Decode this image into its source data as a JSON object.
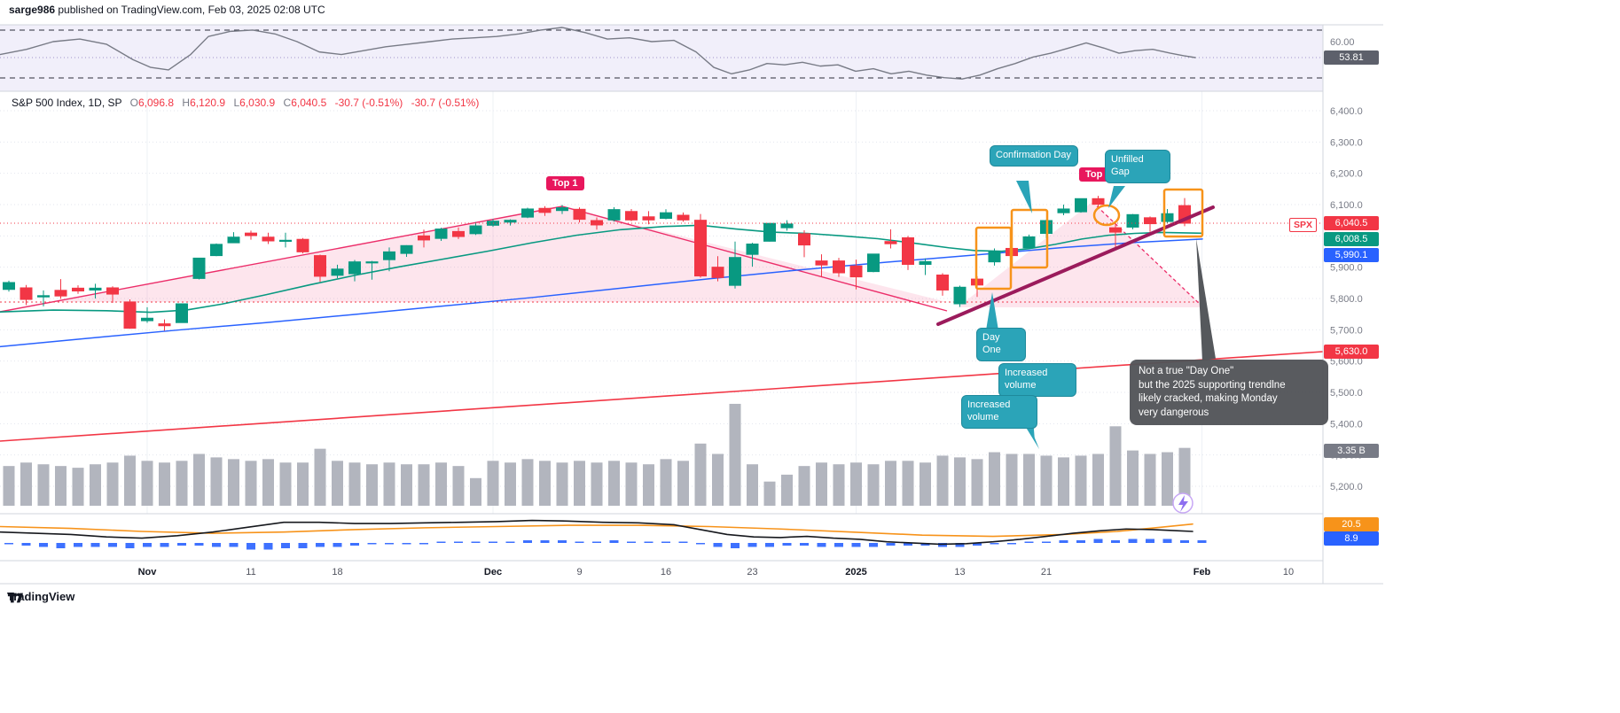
{
  "header": {
    "author": "sarge986",
    "rest": " published on TradingView.com, Feb 03, 2025 02:08 UTC"
  },
  "symbol_info": {
    "title": "S&P 500 Index, 1D, SP",
    "open_label": "O",
    "open": "6,096.8",
    "high_label": "H",
    "high": "6,120.9",
    "low_label": "L",
    "low": "6,030.9",
    "close_label": "C",
    "close": "6,040.5",
    "change": "-30.7 (-0.51%)",
    "change2": "-30.7 (-0.51%)"
  },
  "annotations": {
    "top1": "Top 1",
    "top2": "Top 2",
    "confirmation_day": "Confirmation Day",
    "unfilled_gap": "Unfilled Gap",
    "day_one": "Day One",
    "increased_volume_1": "Increased volume",
    "increased_volume_2": "Increased volume",
    "note": "Not a true \"Day One\"\n but the 2025 supporting trendlne\nlikely cracked, making Monday\nvery dangerous"
  },
  "price_axis": {
    "spx_tag": "SPX",
    "last_price": "6,040.5",
    "ma_fast": "6,008.5",
    "ma_slow": "5,990.1",
    "trendline_level": "5,630.0",
    "volume_total": "3.35 B",
    "levels": [
      "6,400.0",
      "6,300.0",
      "6,200.0",
      "6,100.0",
      "6,000.0",
      "5,900.0",
      "5,800.0",
      "5,700.0",
      "5,600.0",
      "5,500.0",
      "5,400.0",
      "5,300.0",
      "5,200.0"
    ],
    "level_values": [
      6400,
      6300,
      6200,
      6100,
      6000,
      5900,
      5800,
      5700,
      5600,
      5500,
      5400,
      5300,
      5200
    ]
  },
  "rsi_pane": {
    "value": "53.81",
    "level_label": "60.00",
    "series": [
      [
        0,
        55
      ],
      [
        30,
        57
      ],
      [
        60,
        60
      ],
      [
        90,
        61
      ],
      [
        120,
        59
      ],
      [
        150,
        53
      ],
      [
        170,
        50
      ],
      [
        190,
        49
      ],
      [
        215,
        55
      ],
      [
        235,
        62
      ],
      [
        260,
        64
      ],
      [
        285,
        64.5
      ],
      [
        310,
        63
      ],
      [
        335,
        60
      ],
      [
        360,
        56
      ],
      [
        385,
        55
      ],
      [
        410,
        56.5
      ],
      [
        435,
        58
      ],
      [
        460,
        59
      ],
      [
        485,
        60
      ],
      [
        510,
        61
      ],
      [
        535,
        61.5
      ],
      [
        560,
        62
      ],
      [
        585,
        63
      ],
      [
        610,
        64.5
      ],
      [
        634,
        65.5
      ],
      [
        660,
        63.5
      ],
      [
        685,
        61
      ],
      [
        710,
        61.5
      ],
      [
        735,
        60
      ],
      [
        760,
        60.5
      ],
      [
        785,
        56
      ],
      [
        805,
        50
      ],
      [
        825,
        47.5
      ],
      [
        845,
        49
      ],
      [
        865,
        51.5
      ],
      [
        885,
        51
      ],
      [
        905,
        52
      ],
      [
        925,
        50.5
      ],
      [
        945,
        51
      ],
      [
        965,
        48.5
      ],
      [
        985,
        49.5
      ],
      [
        1005,
        47.5
      ],
      [
        1025,
        48.5
      ],
      [
        1045,
        47
      ],
      [
        1065,
        46
      ],
      [
        1085,
        45.5
      ],
      [
        1105,
        47
      ],
      [
        1125,
        49.5
      ],
      [
        1145,
        51.5
      ],
      [
        1165,
        54
      ],
      [
        1185,
        55.5
      ],
      [
        1205,
        57.5
      ],
      [
        1225,
        59.5
      ],
      [
        1245,
        57.5
      ],
      [
        1262,
        55.5
      ],
      [
        1280,
        56.5
      ],
      [
        1300,
        57
      ],
      [
        1320,
        55.5
      ],
      [
        1335,
        54.5
      ],
      [
        1348,
        53.81
      ]
    ]
  },
  "indicator_pane": {
    "orange_value": "20.5",
    "blue_value": "8.9",
    "black_line": [
      [
        0,
        14
      ],
      [
        40,
        13
      ],
      [
        80,
        12
      ],
      [
        120,
        10
      ],
      [
        160,
        9
      ],
      [
        200,
        11
      ],
      [
        240,
        14
      ],
      [
        280,
        18
      ],
      [
        320,
        22
      ],
      [
        360,
        22
      ],
      [
        400,
        21
      ],
      [
        440,
        21
      ],
      [
        480,
        21.5
      ],
      [
        520,
        22
      ],
      [
        560,
        22.5
      ],
      [
        600,
        23.5
      ],
      [
        640,
        23
      ],
      [
        680,
        22
      ],
      [
        720,
        21.5
      ],
      [
        760,
        20
      ],
      [
        790,
        16
      ],
      [
        820,
        12
      ],
      [
        850,
        10
      ],
      [
        880,
        9.5
      ],
      [
        910,
        10.5
      ],
      [
        940,
        9
      ],
      [
        970,
        8
      ],
      [
        1000,
        6
      ],
      [
        1030,
        5
      ],
      [
        1060,
        4
      ],
      [
        1090,
        4.5
      ],
      [
        1120,
        6
      ],
      [
        1150,
        8
      ],
      [
        1180,
        10.5
      ],
      [
        1210,
        13
      ],
      [
        1240,
        15
      ],
      [
        1270,
        16.5
      ],
      [
        1300,
        16
      ],
      [
        1330,
        15
      ],
      [
        1345,
        14.5
      ]
    ],
    "orange_line": [
      [
        0,
        18.5
      ],
      [
        80,
        17
      ],
      [
        160,
        14.5
      ],
      [
        240,
        13
      ],
      [
        320,
        14
      ],
      [
        400,
        16
      ],
      [
        480,
        17.5
      ],
      [
        560,
        18.5
      ],
      [
        640,
        19.5
      ],
      [
        720,
        19.5
      ],
      [
        800,
        18.5
      ],
      [
        880,
        16.5
      ],
      [
        960,
        14
      ],
      [
        1040,
        11.5
      ],
      [
        1120,
        10.5
      ],
      [
        1200,
        12
      ],
      [
        1260,
        14.5
      ],
      [
        1310,
        18
      ],
      [
        1345,
        20.5
      ]
    ],
    "histogram": [
      -1,
      -2,
      -3,
      -4,
      -3,
      -3,
      -3,
      -4,
      -3,
      -3,
      -2,
      -2,
      -3,
      -3,
      -5,
      -5,
      -4,
      -4,
      -3,
      -3,
      -2,
      -1,
      -1,
      -1,
      -1,
      1,
      1,
      1,
      1,
      1,
      2,
      2,
      2,
      1,
      1,
      2,
      1,
      1,
      1,
      1,
      -1,
      -3,
      -4,
      -3,
      -3,
      -2,
      -2,
      -3,
      -3,
      -3,
      -3,
      -2,
      -2,
      -2,
      -3,
      -3,
      -2,
      -1,
      -1,
      1,
      1,
      2,
      2,
      3,
      2,
      3,
      3,
      3,
      2,
      2
    ]
  },
  "time_axis": {
    "labels": [
      {
        "t": "Nov",
        "i": 8,
        "b": true
      },
      {
        "t": "11",
        "i": 14,
        "b": false
      },
      {
        "t": "18",
        "i": 19,
        "b": false
      },
      {
        "t": "Dec",
        "i": 28,
        "b": true
      },
      {
        "t": "9",
        "i": 33,
        "b": false
      },
      {
        "t": "16",
        "i": 38,
        "b": false
      },
      {
        "t": "23",
        "i": 43,
        "b": false
      },
      {
        "t": "2025",
        "i": 49,
        "b": true
      },
      {
        "t": "13",
        "i": 55,
        "b": false
      },
      {
        "t": "21",
        "i": 60,
        "b": false
      },
      {
        "t": "Feb",
        "i": 69,
        "b": true
      },
      {
        "t": "10",
        "i": 74,
        "b": false
      }
    ]
  },
  "footer": {
    "brand": "TradingView"
  },
  "chart_data": {
    "type": "candlestick",
    "symbol": "S&P 500 Index",
    "interval": "1D",
    "exchange": "SP",
    "price_range": [
      5200,
      6400
    ],
    "last_bar": {
      "open": 6096.8,
      "high": 6120.9,
      "low": 6030.9,
      "close": 6040.5,
      "change": -30.7,
      "change_pct": -0.51
    },
    "volume_last": "3.35 B",
    "candles": [
      [
        "Oct 22",
        5829,
        5857,
        5822,
        5851,
        2.3
      ],
      [
        "Oct 23",
        5834,
        5843,
        5779,
        5797,
        2.5
      ],
      [
        "Oct 24",
        5805,
        5826,
        5775,
        5809,
        2.4
      ],
      [
        "Oct 25",
        5826,
        5862,
        5799,
        5808,
        2.3
      ],
      [
        "Oct 28",
        5833,
        5842,
        5815,
        5824,
        2.2
      ],
      [
        "Oct 29",
        5827,
        5847,
        5800,
        5833,
        2.4
      ],
      [
        "Oct 30",
        5834,
        5839,
        5786,
        5814,
        2.5
      ],
      [
        "Oct 31",
        5789,
        5797,
        5703,
        5705,
        2.9
      ],
      [
        "Nov 1",
        5729,
        5772,
        5722,
        5737,
        2.6
      ],
      [
        "Nov 4",
        5719,
        5733,
        5697,
        5713,
        2.5
      ],
      [
        "Nov 5",
        5723,
        5784,
        5723,
        5783,
        2.6
      ],
      [
        "Nov 6",
        5864,
        5930,
        5861,
        5929,
        3.0
      ],
      [
        "Nov 7",
        5937,
        5976,
        5935,
        5973,
        2.8
      ],
      [
        "Nov 8",
        5978,
        6012,
        5977,
        5996,
        2.7
      ],
      [
        "Nov 11",
        6009,
        6017,
        5988,
        6001,
        2.6
      ],
      [
        "Nov 12",
        5996,
        6010,
        5974,
        5984,
        2.7
      ],
      [
        "Nov 13",
        5985,
        6010,
        5963,
        5986,
        2.5
      ],
      [
        "Nov 14",
        5989,
        5993,
        5944,
        5949,
        2.5
      ],
      [
        "Nov 15",
        5937,
        5940,
        5853,
        5871,
        3.3
      ],
      [
        "Nov 18",
        5874,
        5908,
        5865,
        5894,
        2.6
      ],
      [
        "Nov 19",
        5879,
        5923,
        5855,
        5917,
        2.5
      ],
      [
        "Nov 20",
        5914,
        5920,
        5860,
        5917,
        2.4
      ],
      [
        "Nov 21",
        5924,
        5963,
        5887,
        5949,
        2.5
      ],
      [
        "Nov 22",
        5944,
        5970,
        5933,
        5969,
        2.4
      ],
      [
        "Nov 25",
        6000,
        6020,
        5963,
        5987,
        2.4
      ],
      [
        "Nov 26",
        5992,
        6026,
        5984,
        6022,
        2.5
      ],
      [
        "Nov 27",
        6014,
        6027,
        5990,
        5998,
        2.3
      ],
      [
        "Nov 29",
        6007,
        6044,
        6003,
        6032,
        1.6
      ],
      [
        "Dec 2",
        6034,
        6054,
        6029,
        6047,
        2.6
      ],
      [
        "Dec 3",
        6044,
        6053,
        6033,
        6050,
        2.5
      ],
      [
        "Dec 4",
        6060,
        6090,
        6057,
        6086,
        2.7
      ],
      [
        "Dec 5",
        6088,
        6095,
        6064,
        6075,
        2.6
      ],
      [
        "Dec 6",
        6081,
        6099,
        6070,
        6090,
        2.5
      ],
      [
        "Dec 9",
        6085,
        6091,
        6043,
        6053,
        2.6
      ],
      [
        "Dec 10",
        6049,
        6059,
        6020,
        6035,
        2.5
      ],
      [
        "Dec 11",
        6051,
        6092,
        6046,
        6084,
        2.6
      ],
      [
        "Dec 12",
        6078,
        6086,
        6047,
        6051,
        2.5
      ],
      [
        "Dec 13",
        6061,
        6079,
        6037,
        6051,
        2.4
      ],
      [
        "Dec 16",
        6056,
        6085,
        6053,
        6074,
        2.7
      ],
      [
        "Dec 17",
        6066,
        6075,
        6045,
        6051,
        2.6
      ],
      [
        "Dec 18",
        6050,
        6070,
        5867,
        5872,
        3.6
      ],
      [
        "Dec 19",
        5900,
        5935,
        5855,
        5867,
        3.0
      ],
      [
        "Dec 20",
        5842,
        5982,
        5832,
        5931,
        5.9
      ],
      [
        "Dec 23",
        5941,
        5978,
        5902,
        5974,
        2.4
      ],
      [
        "Dec 24",
        5983,
        6041,
        5982,
        6040,
        1.4
      ],
      [
        "Dec 26",
        6026,
        6050,
        6017,
        6038,
        1.8
      ],
      [
        "Dec 27",
        6007,
        6018,
        5932,
        5971,
        2.3
      ],
      [
        "Dec 30",
        5920,
        5941,
        5869,
        5907,
        2.5
      ],
      [
        "Dec 31",
        5920,
        5930,
        5869,
        5882,
        2.4
      ],
      [
        "Jan 2",
        5904,
        5924,
        5829,
        5869,
        2.5
      ],
      [
        "Jan 3",
        5886,
        5943,
        5884,
        5942,
        2.4
      ],
      [
        "Jan 6",
        5982,
        6021,
        5960,
        5975,
        2.6
      ],
      [
        "Jan 7",
        5994,
        6000,
        5891,
        5909,
        2.6
      ],
      [
        "Jan 8",
        5909,
        5928,
        5875,
        5918,
        2.5
      ],
      [
        "Jan 10",
        5875,
        5881,
        5809,
        5827,
        2.9
      ],
      [
        "Jan 13",
        5783,
        5841,
        5773,
        5836,
        2.8
      ],
      [
        "Jan 14",
        5862,
        5871,
        5805,
        5843,
        2.7
      ],
      [
        "Jan 15",
        5917,
        5960,
        5905,
        5950,
        3.1
      ],
      [
        "Jan 16",
        5960,
        5964,
        5923,
        5937,
        3.0
      ],
      [
        "Jan 17",
        5962,
        6004,
        5960,
        5997,
        3.0
      ],
      [
        "Jan 21",
        6008,
        6052,
        5993,
        6049,
        2.9
      ],
      [
        "Jan 22",
        6074,
        6100,
        6066,
        6086,
        2.8
      ],
      [
        "Jan 23",
        6077,
        6118,
        6074,
        6119,
        2.9
      ],
      [
        "Jan 24",
        6119,
        6128,
        6088,
        6101,
        3.0
      ],
      [
        "Jan 27",
        6026,
        6043,
        5963,
        6012,
        4.6
      ],
      [
        "Jan 28",
        6028,
        6070,
        6021,
        6068,
        3.2
      ],
      [
        "Jan 29",
        6058,
        6062,
        6013,
        6039,
        3.0
      ],
      [
        "Jan 30",
        6046,
        6086,
        6040,
        6071,
        3.1
      ],
      [
        "Jan 31",
        6096.8,
        6120.9,
        6030.9,
        6040.5,
        3.35
      ]
    ],
    "overlays": {
      "ma_green_points": [
        [
          0,
          5757
        ],
        [
          60,
          5763
        ],
        [
          120,
          5761
        ],
        [
          170,
          5756
        ],
        [
          210,
          5763
        ],
        [
          250,
          5782
        ],
        [
          300,
          5812
        ],
        [
          350,
          5844
        ],
        [
          400,
          5874
        ],
        [
          450,
          5901
        ],
        [
          500,
          5926
        ],
        [
          550,
          5951
        ],
        [
          600,
          5978
        ],
        [
          650,
          6002
        ],
        [
          700,
          6020
        ],
        [
          750,
          6030
        ],
        [
          790,
          6034
        ],
        [
          830,
          6022
        ],
        [
          870,
          6012
        ],
        [
          910,
          6008
        ],
        [
          950,
          6000
        ],
        [
          990,
          5991
        ],
        [
          1030,
          5977
        ],
        [
          1070,
          5962
        ],
        [
          1100,
          5953
        ],
        [
          1130,
          5951
        ],
        [
          1160,
          5959
        ],
        [
          1190,
          5973
        ],
        [
          1220,
          5990
        ],
        [
          1250,
          6002
        ],
        [
          1280,
          6008
        ],
        [
          1310,
          6011
        ],
        [
          1356,
          6008.5
        ]
      ],
      "ma_blue_points": [
        [
          0,
          5646
        ],
        [
          100,
          5673
        ],
        [
          200,
          5699
        ],
        [
          300,
          5723
        ],
        [
          400,
          5749
        ],
        [
          500,
          5776
        ],
        [
          600,
          5803
        ],
        [
          700,
          5833
        ],
        [
          800,
          5863
        ],
        [
          900,
          5891
        ],
        [
          1000,
          5916
        ],
        [
          1100,
          5939
        ],
        [
          1200,
          5963
        ],
        [
          1280,
          5979
        ],
        [
          1356,
          5990.1
        ]
      ],
      "red_trendline_value": 5630,
      "triangle_base_price": 5790,
      "current_price": 6040.5
    }
  },
  "colors": {
    "up": "#089981",
    "down": "#f23645",
    "ma_fast": "#089981",
    "ma_slow": "#2962ff",
    "trendline_red": "#f23645",
    "pink": "#ec2e6a",
    "maroon": "#9b1b5c",
    "orange_drawing": "#f7931a",
    "callout": "#2ba4b8",
    "badge_rose": "#e8175d",
    "axis_text": "#787b86",
    "volume_bar": "#b2b5be",
    "blue_badge": "#2962ff",
    "orange_badge": "#f7931a"
  }
}
